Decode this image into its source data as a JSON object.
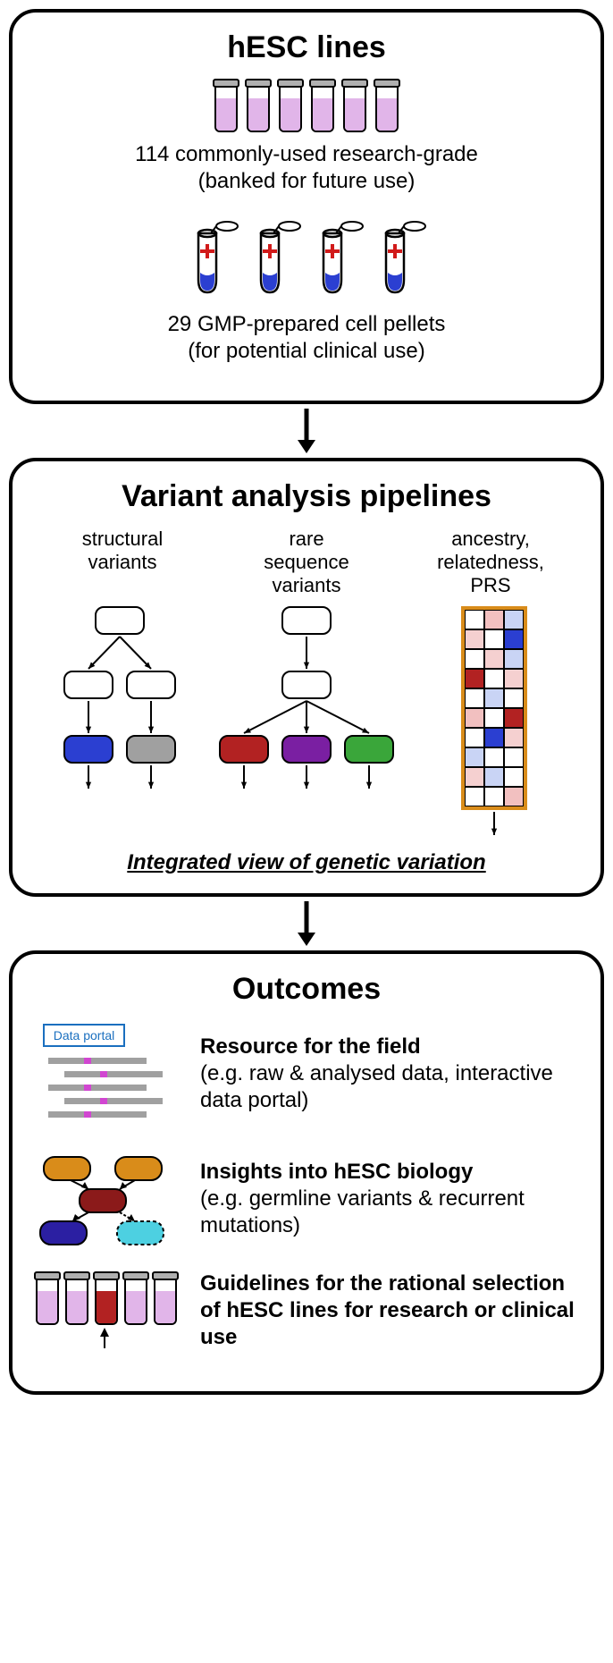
{
  "panel1": {
    "title": "hESC lines",
    "research_caption_line1": "114 commonly-used research-grade",
    "research_caption_line2": "(banked for future use)",
    "gmp_caption_line1": "29 GMP-prepared cell pellets",
    "gmp_caption_line2": "(for potential clinical use)",
    "vial_count": 6,
    "tube_count": 4,
    "vial_liquid_color": "#e1b5e9",
    "vial_cap_color": "#b0b0b0",
    "tube_liquid_color": "#2b3fd1",
    "tube_cross_color": "#d11a1a"
  },
  "panel2": {
    "title": "Variant analysis pipelines",
    "labels": {
      "structural": "structural\nvariants",
      "rare": "rare\nsequence\nvariants",
      "ancestry": "ancestry,\nrelatedness,\nPRS"
    },
    "structural_leaf_colors": [
      "#2b3fd1",
      "#a0a0a0"
    ],
    "rare_leaf_colors": [
      "#b22222",
      "#7a1fa2",
      "#3aa63a"
    ],
    "heatmap": {
      "border_color": "#d98c1a",
      "rows": 10,
      "cols": 3,
      "cells": [
        [
          "#ffffff",
          "#f2c0c0",
          "#c9d4f5"
        ],
        [
          "#f5d0d0",
          "#ffffff",
          "#2b3fd1"
        ],
        [
          "#ffffff",
          "#f5d0d0",
          "#c9d4f5"
        ],
        [
          "#b22222",
          "#ffffff",
          "#f5d0d0"
        ],
        [
          "#ffffff",
          "#c9d4f5",
          "#ffffff"
        ],
        [
          "#f2c0c0",
          "#ffffff",
          "#b22222"
        ],
        [
          "#ffffff",
          "#2b3fd1",
          "#f5d0d0"
        ],
        [
          "#c9d4f5",
          "#ffffff",
          "#ffffff"
        ],
        [
          "#f5d0d0",
          "#c9d4f5",
          "#ffffff"
        ],
        [
          "#ffffff",
          "#ffffff",
          "#f2c0c0"
        ]
      ]
    },
    "integrated_text": "Integrated view of genetic variation"
  },
  "panel3": {
    "title": "Outcomes",
    "resource": {
      "bold": "Resource for the field",
      "detail": "(e.g. raw & analysed data, interactive data portal)",
      "portal_label": "Data portal",
      "portal_border_color": "#1a6fbf",
      "track_colors": [
        "#a0a0a0",
        "#a0a0a0",
        "#a0a0a0",
        "#a0a0a0",
        "#a0a0a0"
      ],
      "accent_color": "#d146d1"
    },
    "insights": {
      "bold": "Insights into hESC biology",
      "detail": "(e.g. germline variants & recurrent mutations)",
      "node_colors": {
        "orange": "#d98c1a",
        "red": "#8b1a1a",
        "blue": "#2b1fa2",
        "cyan": "#4dd0e1"
      }
    },
    "guidelines": {
      "bold": "Guidelines for the rational selection of hESC lines for research or clinical use",
      "vial_count": 5,
      "highlight_index": 2,
      "highlight_color": "#b22222",
      "normal_color": "#e1b5e9"
    }
  },
  "colors": {
    "black": "#000000",
    "white": "#ffffff"
  }
}
